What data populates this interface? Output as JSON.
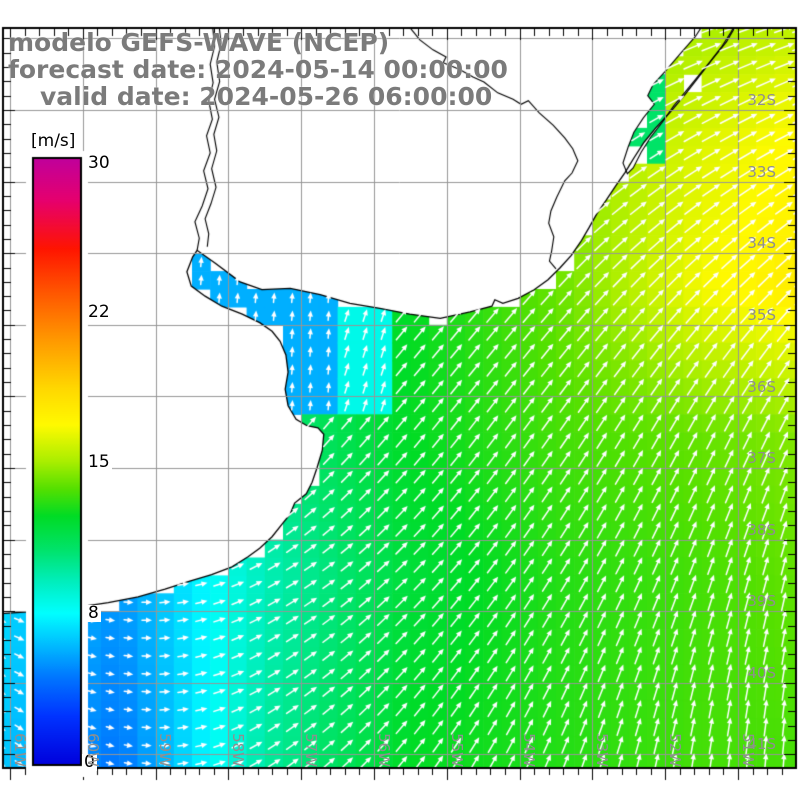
{
  "title": {
    "line1": "modelo GEFS-WAVE (NCEP)",
    "line2": "forecast date: 2024-05-14 00:00:00",
    "line3": "valid date: 2024-05-26 06:00:00"
  },
  "colorbar": {
    "unit_label": "[m/s]",
    "tick_labels": [
      "30",
      "22",
      "15",
      "8",
      "0"
    ],
    "min": 0,
    "max": 30
  },
  "axes": {
    "lat_labels": [
      "32S",
      "33S",
      "34S",
      "35S",
      "36S",
      "37S",
      "38S",
      "39S",
      "40S",
      "41S"
    ],
    "lon_labels": [
      "61W",
      "60W",
      "59W",
      "58W",
      "57W",
      "56W",
      "55W",
      "54W",
      "53W",
      "52W",
      "51W"
    ]
  },
  "chart_data": {
    "type": "heatmap",
    "subtype": "geographic wind field with direction vectors",
    "title": "modelo GEFS-WAVE (NCEP)",
    "field": "wind speed",
    "unit": "m/s",
    "model_run": "2024-05-14 00:00:00",
    "valid_time": "2024-05-26 06:00:00",
    "lon_min": -61.35,
    "lon_max": -50.18,
    "lat_min": -41.2,
    "lat_max": -30.77,
    "grid_resolution_deg": 0.25,
    "legend_position": "left",
    "grid_on": true,
    "colorbar": {
      "min": 0,
      "max": 30,
      "ticks": [
        30,
        22,
        15,
        8,
        0
      ],
      "value_fractions": [
        [
          30,
          0
        ],
        [
          22,
          0.25
        ],
        [
          15,
          0.5
        ],
        [
          8,
          0.75
        ],
        [
          0,
          1
        ]
      ],
      "gradient_stops": [
        [
          0.0,
          "#C0009C"
        ],
        [
          0.07,
          "#E6006E"
        ],
        [
          0.15,
          "#FF1500"
        ],
        [
          0.22,
          "#FF5500"
        ],
        [
          0.3,
          "#FF9900"
        ],
        [
          0.38,
          "#FFD800"
        ],
        [
          0.44,
          "#FFFA00"
        ],
        [
          0.5,
          "#AAEE00"
        ],
        [
          0.545,
          "#55E000"
        ],
        [
          0.59,
          "#00DC25"
        ],
        [
          0.645,
          "#00E36A"
        ],
        [
          0.7,
          "#00EFC0"
        ],
        [
          0.75,
          "#00FFFF"
        ],
        [
          0.8,
          "#00BFFF"
        ],
        [
          0.855,
          "#0077FF"
        ],
        [
          0.92,
          "#0033FF"
        ],
        [
          1.0,
          "#0000DC"
        ]
      ]
    },
    "speed_grid": {
      "lons": [
        -61.5,
        -59.5,
        -57.5,
        -55.5,
        -53.5,
        -51.5,
        -50.0
      ],
      "lats": [
        -30.8,
        -32.5,
        -34.5,
        -36.5,
        -38.5,
        -41.2
      ],
      "values": [
        [
          9.0,
          8.0,
          10.0,
          12.0,
          14.0,
          15.0,
          15.5
        ],
        [
          8.0,
          7.0,
          11.0,
          13.0,
          14.5,
          16.0,
          17.0
        ],
        [
          8.0,
          7.5,
          11.0,
          12.5,
          14.0,
          16.5,
          17.5
        ],
        [
          9.0,
          9.5,
          10.5,
          12.5,
          13.5,
          14.0,
          14.5
        ],
        [
          7.5,
          5.5,
          9.5,
          12.0,
          13.0,
          13.5,
          14.0
        ],
        [
          7.0,
          4.5,
          10.0,
          12.5,
          13.0,
          13.5,
          13.5
        ]
      ]
    },
    "direction_grid": {
      "lons": [
        -61.5,
        -59.5,
        -57.5,
        -55.5,
        -53.5,
        -51.5,
        -50.0
      ],
      "lats": [
        -30.8,
        -32.5,
        -34.5,
        -36.5,
        -38.5,
        -41.2
      ],
      "bearings_deg": [
        [
          25,
          12,
          25,
          55,
          65,
          70,
          72
        ],
        [
          15,
          8,
          25,
          45,
          55,
          60,
          62
        ],
        [
          20,
          15,
          30,
          40,
          42,
          45,
          45
        ],
        [
          70,
          55,
          42,
          40,
          35,
          28,
          25
        ],
        [
          115,
          95,
          62,
          45,
          32,
          20,
          12
        ],
        [
          135,
          102,
          58,
          38,
          22,
          8,
          3
        ]
      ]
    },
    "zones": [
      {
        "name": "rio-de-la-plata-inner",
        "lon": [
          -58.8,
          -56.55
        ],
        "lat": [
          -36.35,
          -33.7
        ],
        "max_speed": 6.0,
        "dir": 5
      },
      {
        "name": "rio-de-la-plata-mouth",
        "lon": [
          -56.55,
          -55.7
        ],
        "lat": [
          -36.3,
          -34.5
        ],
        "max_speed": 8.5,
        "dir": 18
      },
      {
        "name": "lagoa-mirim",
        "lon": [
          -52.6,
          -51.9
        ],
        "lat": [
          -32.8,
          -31.3
        ],
        "max_speed": 11.0,
        "dir": null
      }
    ],
    "coastline": {
      "ocean_coast": [
        [
          -51.0,
          -30.77
        ],
        [
          -51.16,
          -31.05
        ],
        [
          -51.36,
          -31.3
        ],
        [
          -51.55,
          -31.55
        ],
        [
          -51.74,
          -31.8
        ],
        [
          -51.93,
          -32.03
        ],
        [
          -52.13,
          -32.25
        ],
        [
          -52.29,
          -32.45
        ],
        [
          -52.43,
          -32.67
        ],
        [
          -52.55,
          -32.87
        ],
        [
          -52.68,
          -33.06
        ],
        [
          -52.81,
          -33.26
        ],
        [
          -52.94,
          -33.45
        ],
        [
          -53.05,
          -33.65
        ],
        [
          -53.16,
          -33.84
        ],
        [
          -53.29,
          -34.03
        ],
        [
          -53.45,
          -34.21
        ],
        [
          -53.61,
          -34.37
        ],
        [
          -53.8,
          -34.51
        ],
        [
          -54.02,
          -34.63
        ],
        [
          -54.23,
          -34.7
        ],
        [
          -54.34,
          -34.65
        ],
        [
          -54.38,
          -34.74
        ],
        [
          -54.68,
          -34.82
        ],
        [
          -55.09,
          -34.91
        ],
        [
          -55.51,
          -34.85
        ],
        [
          -55.92,
          -34.77
        ],
        [
          -56.33,
          -34.7
        ],
        [
          -56.74,
          -34.58
        ],
        [
          -57.15,
          -34.49
        ],
        [
          -57.54,
          -34.51
        ],
        [
          -57.84,
          -34.4
        ],
        [
          -58.18,
          -34.14
        ],
        [
          -58.43,
          -33.96
        ],
        [
          -58.49,
          -34.05
        ],
        [
          -58.57,
          -34.26
        ],
        [
          -58.51,
          -34.46
        ],
        [
          -58.32,
          -34.6
        ],
        [
          -58.09,
          -34.74
        ],
        [
          -57.81,
          -34.85
        ],
        [
          -57.57,
          -34.97
        ],
        [
          -57.4,
          -35.09
        ],
        [
          -57.29,
          -35.23
        ],
        [
          -57.21,
          -35.42
        ],
        [
          -57.18,
          -35.66
        ],
        [
          -57.22,
          -35.9
        ],
        [
          -57.18,
          -36.13
        ],
        [
          -57.07,
          -36.32
        ],
        [
          -56.92,
          -36.41
        ],
        [
          -56.77,
          -36.44
        ],
        [
          -56.69,
          -36.53
        ],
        [
          -56.71,
          -36.75
        ],
        [
          -56.78,
          -36.99
        ],
        [
          -56.85,
          -37.2
        ],
        [
          -56.93,
          -37.36
        ],
        [
          -57.09,
          -37.49
        ],
        [
          -57.15,
          -37.64
        ],
        [
          -57.26,
          -37.78
        ],
        [
          -57.4,
          -37.96
        ],
        [
          -57.57,
          -38.12
        ],
        [
          -57.73,
          -38.24
        ],
        [
          -57.95,
          -38.38
        ],
        [
          -58.23,
          -38.49
        ],
        [
          -58.53,
          -38.58
        ],
        [
          -58.87,
          -38.69
        ],
        [
          -59.24,
          -38.8
        ],
        [
          -59.65,
          -38.88
        ],
        [
          -60.11,
          -38.95
        ],
        [
          -60.59,
          -39.0
        ],
        [
          -61.07,
          -39.03
        ],
        [
          -61.3,
          -39.05
        ]
      ],
      "lagoon": [
        [
          -51.48,
          -30.81
        ],
        [
          -51.59,
          -30.98
        ],
        [
          -51.78,
          -31.2
        ],
        [
          -52.0,
          -31.46
        ],
        [
          -52.17,
          -31.65
        ],
        [
          -52.24,
          -31.8
        ],
        [
          -52.15,
          -31.92
        ],
        [
          -52.3,
          -32.11
        ],
        [
          -52.43,
          -32.31
        ],
        [
          -52.51,
          -32.52
        ],
        [
          -52.58,
          -32.74
        ],
        [
          -52.52,
          -32.89
        ],
        [
          -52.44,
          -32.81
        ],
        [
          -52.33,
          -32.59
        ],
        [
          -52.2,
          -32.38
        ],
        [
          -52.04,
          -32.17
        ],
        [
          -51.88,
          -31.94
        ],
        [
          -51.71,
          -31.73
        ],
        [
          -51.55,
          -31.53
        ],
        [
          -51.38,
          -31.32
        ],
        [
          -51.22,
          -31.11
        ],
        [
          -51.1,
          -30.92
        ],
        [
          -51.04,
          -30.8
        ]
      ],
      "uruguay_river_w": [
        [
          -58.43,
          -33.96
        ],
        [
          -58.4,
          -33.79
        ],
        [
          -58.46,
          -33.56
        ],
        [
          -58.36,
          -33.34
        ],
        [
          -58.28,
          -33.1
        ],
        [
          -58.34,
          -32.85
        ],
        [
          -58.25,
          -32.6
        ],
        [
          -58.3,
          -32.36
        ],
        [
          -58.22,
          -32.13
        ],
        [
          -58.27,
          -31.87
        ],
        [
          -58.21,
          -31.62
        ],
        [
          -58.25,
          -31.36
        ],
        [
          -58.19,
          -31.11
        ],
        [
          -58.22,
          -30.8
        ]
      ],
      "uruguay_river_e": [
        [
          -58.29,
          -33.91
        ],
        [
          -58.27,
          -33.73
        ],
        [
          -58.32,
          -33.52
        ],
        [
          -58.24,
          -33.31
        ],
        [
          -58.17,
          -33.08
        ],
        [
          -58.23,
          -32.82
        ],
        [
          -58.16,
          -32.57
        ],
        [
          -58.2,
          -32.34
        ],
        [
          -58.13,
          -32.1
        ],
        [
          -58.19,
          -31.85
        ],
        [
          -58.12,
          -31.6
        ],
        [
          -58.16,
          -31.33
        ],
        [
          -58.1,
          -31.08
        ],
        [
          -58.13,
          -30.8
        ]
      ],
      "inland_border": [
        [
          -55.57,
          -30.77
        ],
        [
          -55.37,
          -31.02
        ],
        [
          -55.19,
          -31.16
        ],
        [
          -55.01,
          -31.26
        ],
        [
          -55.05,
          -31.34
        ],
        [
          -54.83,
          -31.43
        ],
        [
          -54.64,
          -31.54
        ],
        [
          -54.49,
          -31.61
        ],
        [
          -54.3,
          -31.76
        ],
        [
          -54.09,
          -31.85
        ],
        [
          -53.98,
          -31.92
        ],
        [
          -53.88,
          -31.87
        ],
        [
          -53.73,
          -32.04
        ],
        [
          -53.54,
          -32.21
        ],
        [
          -53.38,
          -32.39
        ],
        [
          -53.27,
          -32.54
        ],
        [
          -53.2,
          -32.71
        ],
        [
          -53.28,
          -32.88
        ],
        [
          -53.38,
          -32.99
        ],
        [
          -53.49,
          -33.22
        ],
        [
          -53.57,
          -33.41
        ],
        [
          -53.6,
          -33.58
        ],
        [
          -53.53,
          -33.77
        ],
        [
          -53.56,
          -33.97
        ],
        [
          -53.59,
          -34.11
        ],
        [
          -53.5,
          -34.22
        ]
      ]
    },
    "styles": {
      "land_color": "#FFFFFF",
      "coast_color": "#000000",
      "grid_color": "#969696",
      "arrow_color": "#FFFFFF",
      "frame_color": "#000000",
      "title_color": "#7B7B7B",
      "axis_label_color": "#8F8F8F"
    }
  }
}
